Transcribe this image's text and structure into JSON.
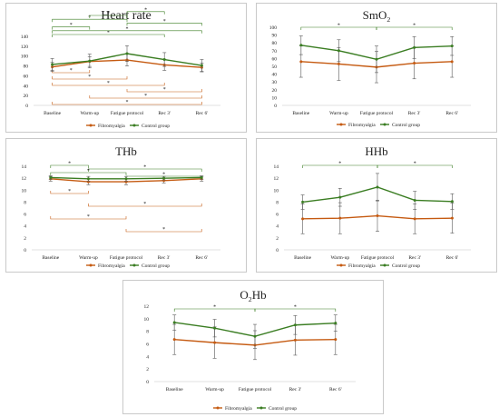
{
  "colors": {
    "fibromyalgia": "#c55a11",
    "control": "#3a7d22",
    "axis": "#d9d9d9",
    "text": "#222222",
    "errorbar": "#595959"
  },
  "legend": {
    "fibromyalgia": "Fibromyalgia",
    "control": "Control group"
  },
  "chart_data": [
    {
      "id": "heart-rate",
      "type": "line",
      "title": "Heart rate",
      "title_sub": "",
      "categories": [
        "Baseline",
        "Warm-up",
        "Fatigue protocol",
        "Rec 3'",
        "Rec 6'"
      ],
      "yticks": [
        0,
        20,
        40,
        60,
        80,
        100,
        120,
        140
      ],
      "ylim": [
        0,
        140
      ],
      "grid": false,
      "legend_position": "bottom",
      "series": [
        {
          "name": "Fibromyalgia",
          "values": [
            78,
            89,
            92,
            82,
            77
          ],
          "errors": [
            9,
            10,
            12,
            11,
            9
          ]
        },
        {
          "name": "Control group",
          "values": [
            83,
            90,
            105,
            93,
            81
          ],
          "errors": [
            12,
            14,
            16,
            14,
            12
          ]
        }
      ],
      "sig_top": [
        {
          "from": 0,
          "to": 3,
          "label": "*"
        },
        {
          "from": 0,
          "to": 4,
          "label": "*"
        },
        {
          "from": 0,
          "to": 1,
          "label": "*"
        },
        {
          "from": 2,
          "to": 4,
          "label": "*"
        },
        {
          "from": 0,
          "to": 2,
          "label": "*"
        },
        {
          "from": 1,
          "to": 2,
          "label": "*"
        },
        {
          "from": 2,
          "to": 3,
          "label": "*"
        }
      ],
      "sig_bottom": [
        {
          "from": 0,
          "to": 1,
          "label": "*"
        },
        {
          "from": 0,
          "to": 2,
          "label": "*"
        },
        {
          "from": 0,
          "to": 3,
          "label": "*"
        },
        {
          "from": 2,
          "to": 4,
          "label": "*"
        },
        {
          "from": 1,
          "to": 4,
          "label": "*"
        },
        {
          "from": 0,
          "to": 4,
          "label": "*"
        }
      ]
    },
    {
      "id": "smo2",
      "type": "line",
      "title": "SmO",
      "title_sub": "2",
      "categories": [
        "Baseline",
        "Warm-up",
        "Fatigue protocol",
        "Rec 3'",
        "Rec 6'"
      ],
      "yticks": [
        0,
        10,
        20,
        30,
        40,
        50,
        60,
        70,
        80,
        90,
        100
      ],
      "ylim": [
        0,
        100
      ],
      "grid": false,
      "legend_position": "bottom",
      "series": [
        {
          "name": "Fibromyalgia",
          "values": [
            56,
            53,
            49,
            54,
            56
          ],
          "errors": [
            20,
            21,
            20,
            20,
            20
          ]
        },
        {
          "name": "Control group",
          "values": [
            77,
            70,
            59,
            74,
            76
          ],
          "errors": [
            12,
            14,
            17,
            14,
            12
          ]
        }
      ],
      "sig_top": [
        {
          "from": 0,
          "to": 2,
          "label": "*"
        },
        {
          "from": 2,
          "to": 4,
          "label": "*"
        }
      ],
      "sig_bottom": []
    },
    {
      "id": "thb",
      "type": "line",
      "title": "THb",
      "title_sub": "",
      "categories": [
        "Baseline",
        "Warm-up",
        "Fatigue protocol",
        "Rec 3'",
        "Rec 6'"
      ],
      "yticks": [
        0,
        2,
        4,
        6,
        8,
        10,
        12,
        14
      ],
      "ylim": [
        0,
        14
      ],
      "grid": false,
      "legend_position": "bottom",
      "series": [
        {
          "name": "Fibromyalgia",
          "values": [
            11.9,
            11.4,
            11.4,
            11.6,
            11.9
          ],
          "errors": [
            0.4,
            0.5,
            0.5,
            0.4,
            0.4
          ]
        },
        {
          "name": "Control group",
          "values": [
            12.1,
            11.9,
            11.9,
            12.0,
            12.1
          ],
          "errors": [
            0.3,
            0.4,
            0.4,
            0.3,
            0.3
          ]
        }
      ],
      "sig_top": [
        {
          "from": 0,
          "to": 1,
          "label": "*"
        },
        {
          "from": 1,
          "to": 4,
          "label": "*"
        },
        {
          "from": 0,
          "to": 2,
          "label": "*"
        },
        {
          "from": 2,
          "to": 4,
          "label": "*"
        }
      ],
      "sig_bottom": [
        {
          "from": 0,
          "to": 1,
          "label": "*"
        },
        {
          "from": 1,
          "to": 4,
          "label": "*"
        },
        {
          "from": 0,
          "to": 2,
          "label": "*"
        },
        {
          "from": 2,
          "to": 4,
          "label": "*"
        }
      ]
    },
    {
      "id": "hhb",
      "type": "line",
      "title": "HHb",
      "title_sub": "",
      "categories": [
        "Baseline",
        "Warm-up",
        "Fatigue protocol",
        "Rec 3'",
        "Rec 6'"
      ],
      "yticks": [
        0,
        2,
        4,
        6,
        8,
        10,
        12,
        14
      ],
      "ylim": [
        0,
        14
      ],
      "grid": false,
      "legend_position": "bottom",
      "series": [
        {
          "name": "Fibromyalgia",
          "values": [
            5.2,
            5.3,
            5.7,
            5.2,
            5.3
          ],
          "errors": [
            2.5,
            2.6,
            2.6,
            2.5,
            2.5
          ]
        },
        {
          "name": "Control group",
          "values": [
            8.0,
            8.8,
            10.5,
            8.3,
            8.1
          ],
          "errors": [
            1.2,
            1.5,
            2.3,
            1.5,
            1.3
          ]
        }
      ],
      "sig_top": [
        {
          "from": 0,
          "to": 2,
          "label": "*"
        },
        {
          "from": 2,
          "to": 4,
          "label": "*"
        }
      ],
      "sig_bottom": []
    },
    {
      "id": "o2hb",
      "type": "line",
      "title": "O",
      "title_sub": "2",
      "title_rest": "Hb",
      "categories": [
        "Baseline",
        "Warm-up",
        "Fatigue protocol",
        "Rec 3'",
        "Rec 6'"
      ],
      "yticks": [
        0,
        2,
        4,
        6,
        8,
        10,
        12
      ],
      "ylim": [
        0,
        12
      ],
      "grid": false,
      "legend_position": "bottom",
      "series": [
        {
          "name": "Fibromyalgia",
          "values": [
            6.7,
            6.2,
            5.8,
            6.6,
            6.7
          ],
          "errors": [
            2.4,
            2.5,
            2.3,
            2.4,
            2.4
          ]
        },
        {
          "name": "Control group",
          "values": [
            9.4,
            8.5,
            7.2,
            9.0,
            9.3
          ],
          "errors": [
            1.2,
            1.4,
            1.9,
            1.5,
            1.3
          ]
        }
      ],
      "sig_top": [
        {
          "from": 0,
          "to": 2,
          "label": "*"
        },
        {
          "from": 2,
          "to": 4,
          "label": "*"
        }
      ],
      "sig_bottom": []
    }
  ]
}
